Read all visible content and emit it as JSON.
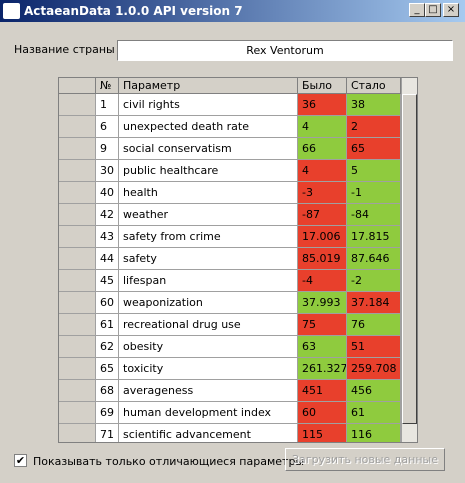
{
  "window": {
    "title": "ActaeanData 1.0.0 API version 7"
  },
  "country": {
    "label": "Название страны",
    "value": "Rex Ventorum"
  },
  "table": {
    "headers": [
      "№",
      "Параметр",
      "Было",
      "Стало"
    ],
    "rows": [
      {
        "n": 1,
        "param": "civil rights",
        "before": 36,
        "after": 38,
        "before_color": "#e8402c",
        "after_color": "#8fcb3e"
      },
      {
        "n": 6,
        "param": "unexpected death rate",
        "before": 4,
        "after": 2,
        "before_color": "#8fcb3e",
        "after_color": "#e8402c"
      },
      {
        "n": 9,
        "param": "social conservatism",
        "before": 66,
        "after": 65,
        "before_color": "#8fcb3e",
        "after_color": "#e8402c"
      },
      {
        "n": 30,
        "param": "public healthcare",
        "before": 4,
        "after": 5,
        "before_color": "#e8402c",
        "after_color": "#8fcb3e"
      },
      {
        "n": 40,
        "param": "health",
        "before": -3,
        "after": -1,
        "before_color": "#e8402c",
        "after_color": "#8fcb3e"
      },
      {
        "n": 42,
        "param": "weather",
        "before": -87,
        "after": -84,
        "before_color": "#e8402c",
        "after_color": "#8fcb3e"
      },
      {
        "n": 43,
        "param": "safety from crime",
        "before": 17.006,
        "after": 17.815,
        "before_color": "#e8402c",
        "after_color": "#8fcb3e"
      },
      {
        "n": 44,
        "param": "safety",
        "before": 85.019,
        "after": 87.646,
        "before_color": "#e8402c",
        "after_color": "#8fcb3e"
      },
      {
        "n": 45,
        "param": "lifespan",
        "before": -4,
        "after": -2,
        "before_color": "#e8402c",
        "after_color": "#8fcb3e"
      },
      {
        "n": 60,
        "param": "weaponization",
        "before": 37.993,
        "after": 37.184,
        "before_color": "#8fcb3e",
        "after_color": "#e8402c"
      },
      {
        "n": 61,
        "param": "recreational drug use",
        "before": 75,
        "after": 76,
        "before_color": "#e8402c",
        "after_color": "#8fcb3e"
      },
      {
        "n": 62,
        "param": "obesity",
        "before": 63,
        "after": 51,
        "before_color": "#8fcb3e",
        "after_color": "#e8402c"
      },
      {
        "n": 65,
        "param": "toxicity",
        "before": 261.327,
        "after": 259.708,
        "before_color": "#8fcb3e",
        "after_color": "#e8402c"
      },
      {
        "n": 68,
        "param": "averageness",
        "before": 451,
        "after": 456,
        "before_color": "#e8402c",
        "after_color": "#8fcb3e"
      },
      {
        "n": 69,
        "param": "human development index",
        "before": 60,
        "after": 61,
        "before_color": "#e8402c",
        "after_color": "#8fcb3e"
      },
      {
        "n": 71,
        "param": "scientific advancement",
        "before": 115,
        "after": 116,
        "before_color": "#e8402c",
        "after_color": "#8fcb3e"
      }
    ]
  },
  "filter": {
    "label": "Показывать только отличающиеся параметры",
    "checked": true
  },
  "button": {
    "label": "Загрузить новые данные"
  }
}
